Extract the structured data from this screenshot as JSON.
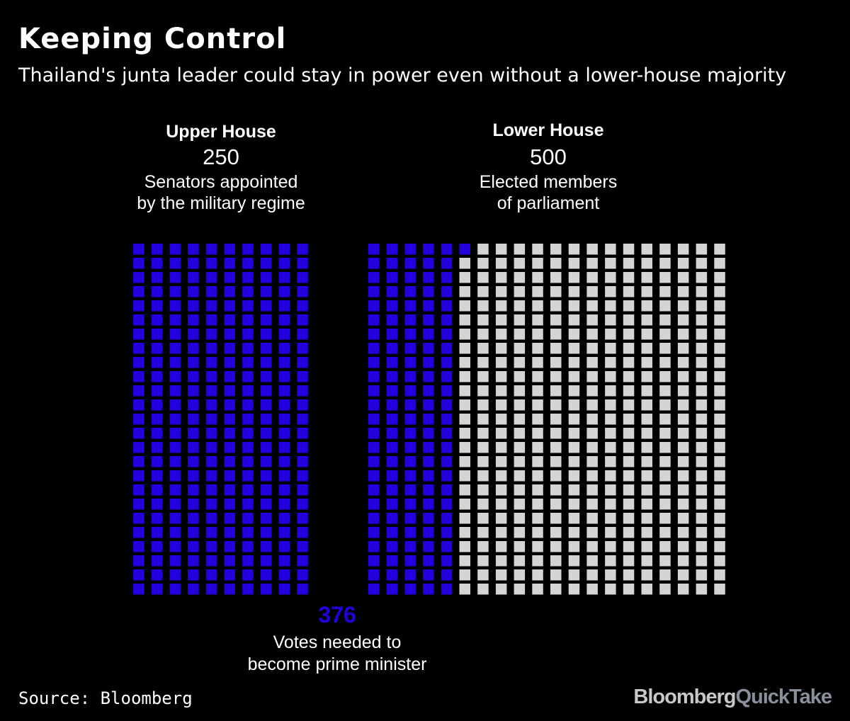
{
  "title": "Keeping Control",
  "subtitle": "Thailand's junta leader could stay in power even without a lower-house majority",
  "colors": {
    "background": "#000000",
    "junta": "#2200dd",
    "other": "#d4d4d4",
    "text": "#ffffff"
  },
  "chart_data": {
    "type": "waffle",
    "unit": "seats",
    "groups": [
      {
        "name": "Upper House",
        "count": "250",
        "description_lines": [
          "Senators appointed",
          "by the military regime"
        ],
        "total": 250,
        "highlighted": 250,
        "columns": 10
      },
      {
        "name": "Lower House",
        "count": "500",
        "description_lines": [
          "Elected members",
          "of parliament"
        ],
        "total": 500,
        "highlighted": 126,
        "columns": 20
      }
    ],
    "threshold": {
      "value": "376",
      "description_lines": [
        "Votes needed to",
        "become prime minister"
      ]
    }
  },
  "source": "Source: Bloomberg",
  "brand": {
    "part1": "Bloomberg",
    "part2": "QuickTake"
  }
}
